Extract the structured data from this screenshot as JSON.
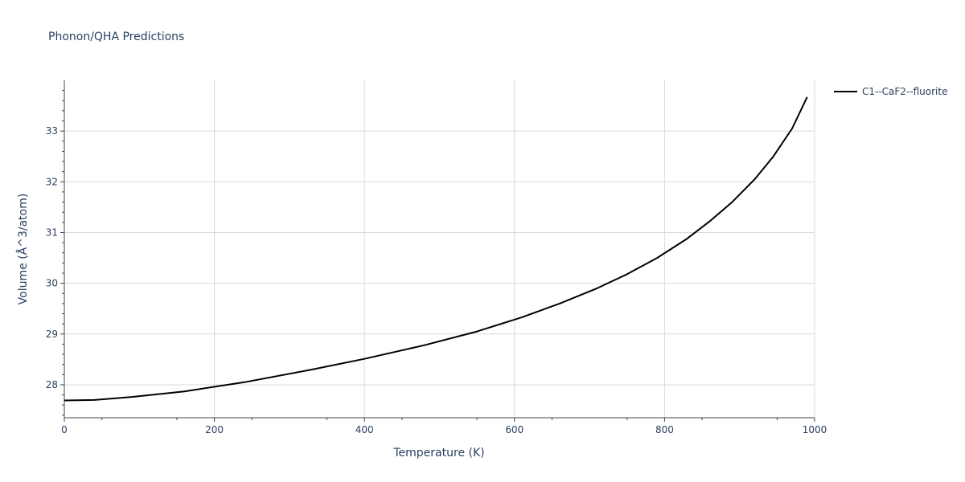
{
  "chart_data": {
    "type": "line",
    "title": "Phonon/QHA Predictions",
    "xlabel": "Temperature (K)",
    "ylabel": "Volume (Å^3/atom)",
    "xlim": [
      0,
      1000
    ],
    "ylim": [
      27.35,
      34.0
    ],
    "xticks": [
      0,
      200,
      400,
      600,
      800,
      1000
    ],
    "yticks": [
      28,
      29,
      30,
      31,
      32,
      33
    ],
    "grid": true,
    "legend_position": "top-right",
    "series": [
      {
        "name": "C1--CaF2--fluorite",
        "color": "#000000",
        "x": [
          0,
          40,
          90,
          160,
          240,
          330,
          400,
          480,
          550,
          610,
          660,
          710,
          750,
          790,
          830,
          860,
          890,
          920,
          945,
          970,
          990
        ],
        "y": [
          27.69,
          27.7,
          27.76,
          27.87,
          28.05,
          28.3,
          28.51,
          28.78,
          29.05,
          29.33,
          29.6,
          29.9,
          30.18,
          30.5,
          30.88,
          31.22,
          31.6,
          32.05,
          32.5,
          33.05,
          33.67
        ]
      }
    ]
  }
}
